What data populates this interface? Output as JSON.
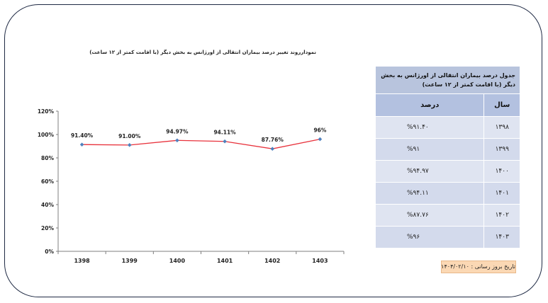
{
  "chart_data": {
    "type": "line",
    "title": "نمودارروند تغییر درصد بیماران انتقالی از اورژانس به بخش دیگر (با اقامت کمتر از ۱۲ ساعت)",
    "categories": [
      "1398",
      "1399",
      "1400",
      "1401",
      "1402",
      "1403"
    ],
    "series": [
      {
        "values": [
          91.4,
          91.0,
          94.97,
          94.11,
          87.76,
          96
        ],
        "data_labels": [
          "91.40%",
          "91.00%",
          "94.97%",
          "94.11%",
          "87.76%",
          "96%"
        ]
      }
    ],
    "ylim": [
      0,
      120
    ],
    "yticks": [
      0,
      20,
      40,
      60,
      80,
      100,
      120
    ],
    "ytick_labels": [
      "0%",
      "20%",
      "40%",
      "60%",
      "80%",
      "100%",
      "120%"
    ],
    "grid": false,
    "line_color": "#e8323c",
    "marker_color": "#4f81bd"
  },
  "table": {
    "title": "جدول درصد بیماران انتقالی از اورژانس به بخش دیگر (با اقامت کمتر از ۱۲ ساعت)",
    "headers": [
      "سال",
      "درصد"
    ],
    "rows": [
      {
        "year": "۱۳۹۸",
        "value": "%۹۱.۴۰"
      },
      {
        "year": "۱۳۹۹",
        "value": "%۹۱"
      },
      {
        "year": "۱۴۰۰",
        "value": "%۹۴.۹۷"
      },
      {
        "year": "۱۴۰۱",
        "value": "%۹۴.۱۱"
      },
      {
        "year": "۱۴۰۲",
        "value": "%۸۷.۷۶"
      },
      {
        "year": "۱۴۰۳",
        "value": "%۹۶"
      }
    ]
  },
  "footer": {
    "date_text": "تاریخ بروز رسانی : ۱۴۰۴/۰۲/۱۰"
  }
}
